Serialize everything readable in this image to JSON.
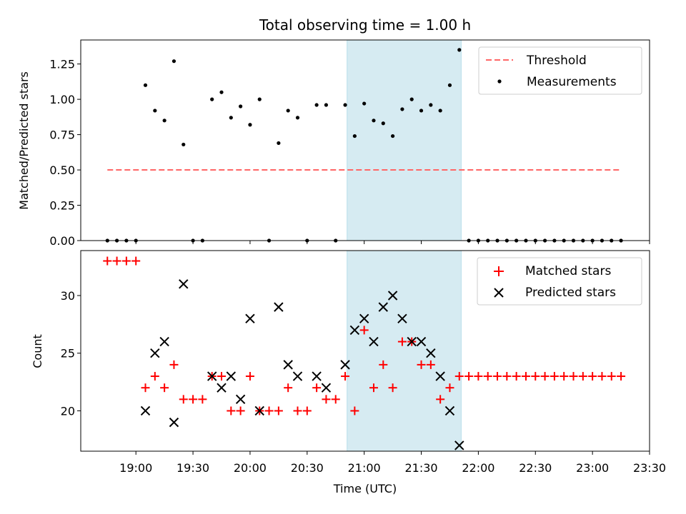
{
  "figure": {
    "title": "Total observing time = 1.00 h",
    "shade_color": "#add8e6",
    "threshold_color": "#ff6666",
    "matched_color": "#ff0000",
    "predicted_color": "#000000"
  },
  "chart_data": [
    {
      "type": "scatter",
      "title": "Total observing time = 1.00 h",
      "xlabel": "",
      "ylabel": "Matched/Predicted stars",
      "ylim": [
        0,
        1.42
      ],
      "yticks": [
        0.0,
        0.25,
        0.5,
        0.75,
        1.0,
        1.25
      ],
      "ytick_labels": [
        "0.00",
        "0.25",
        "0.50",
        "0.75",
        "1.00",
        "1.25"
      ],
      "xlim": [
        "18:31",
        "23:30"
      ],
      "shaded_interval": [
        "20:51",
        "21:51"
      ],
      "legend_position": "top-right",
      "threshold": {
        "name": "Threshold",
        "style": "dashed",
        "x": [
          "18:45",
          "23:15"
        ],
        "y": 0.5
      },
      "series": [
        {
          "name": "Measurements",
          "points": [
            [
              "18:45",
              0.0
            ],
            [
              "18:50",
              0.0
            ],
            [
              "18:55",
              0.0
            ],
            [
              "19:00",
              0.0
            ],
            [
              "19:05",
              1.1
            ],
            [
              "19:10",
              0.92
            ],
            [
              "19:15",
              0.85
            ],
            [
              "19:20",
              1.27
            ],
            [
              "19:25",
              0.68
            ],
            [
              "19:30",
              0.0
            ],
            [
              "19:35",
              0.0
            ],
            [
              "19:40",
              1.0
            ],
            [
              "19:45",
              1.05
            ],
            [
              "19:50",
              0.87
            ],
            [
              "19:55",
              0.95
            ],
            [
              "20:00",
              0.82
            ],
            [
              "20:05",
              1.0
            ],
            [
              "20:10",
              0.0
            ],
            [
              "20:15",
              0.69
            ],
            [
              "20:20",
              0.92
            ],
            [
              "20:25",
              0.87
            ],
            [
              "20:30",
              0.0
            ],
            [
              "20:35",
              0.96
            ],
            [
              "20:40",
              0.96
            ],
            [
              "20:45",
              0.0
            ],
            [
              "20:50",
              0.96
            ],
            [
              "20:55",
              0.74
            ],
            [
              "21:00",
              0.97
            ],
            [
              "21:05",
              0.85
            ],
            [
              "21:10",
              0.83
            ],
            [
              "21:15",
              0.74
            ],
            [
              "21:20",
              0.93
            ],
            [
              "21:25",
              1.0
            ],
            [
              "21:30",
              0.92
            ],
            [
              "21:35",
              0.96
            ],
            [
              "21:40",
              0.92
            ],
            [
              "21:45",
              1.1
            ],
            [
              "21:50",
              1.35
            ],
            [
              "21:55",
              0.0
            ],
            [
              "22:00",
              0.0
            ],
            [
              "22:05",
              0.0
            ],
            [
              "22:10",
              0.0
            ],
            [
              "22:15",
              0.0
            ],
            [
              "22:20",
              0.0
            ],
            [
              "22:25",
              0.0
            ],
            [
              "22:30",
              0.0
            ],
            [
              "22:35",
              0.0
            ],
            [
              "22:40",
              0.0
            ],
            [
              "22:45",
              0.0
            ],
            [
              "22:50",
              0.0
            ],
            [
              "22:55",
              0.0
            ],
            [
              "23:00",
              0.0
            ],
            [
              "23:05",
              0.0
            ],
            [
              "23:10",
              0.0
            ],
            [
              "23:15",
              0.0
            ]
          ]
        }
      ]
    },
    {
      "type": "scatter",
      "xlabel": "Time (UTC)",
      "ylabel": "Count",
      "ylim": [
        16.5,
        33.9
      ],
      "yticks": [
        20,
        25,
        30
      ],
      "ytick_labels": [
        "20",
        "25",
        "30"
      ],
      "xlim": [
        "18:31",
        "23:30"
      ],
      "xticks": [
        "19:00",
        "19:30",
        "20:00",
        "20:30",
        "21:00",
        "21:30",
        "22:00",
        "22:30",
        "23:00",
        "23:30"
      ],
      "shaded_interval": [
        "20:51",
        "21:51"
      ],
      "legend_position": "top-right",
      "series": [
        {
          "name": "Matched stars",
          "marker": "plus",
          "points": [
            [
              "18:45",
              33
            ],
            [
              "18:50",
              33
            ],
            [
              "18:55",
              33
            ],
            [
              "19:00",
              33
            ],
            [
              "19:05",
              22
            ],
            [
              "19:10",
              23
            ],
            [
              "19:15",
              22
            ],
            [
              "19:20",
              24
            ],
            [
              "19:25",
              21
            ],
            [
              "19:30",
              21
            ],
            [
              "19:35",
              21
            ],
            [
              "19:40",
              23
            ],
            [
              "19:45",
              23
            ],
            [
              "19:50",
              20
            ],
            [
              "19:55",
              20
            ],
            [
              "20:00",
              23
            ],
            [
              "20:05",
              20
            ],
            [
              "20:10",
              20
            ],
            [
              "20:15",
              20
            ],
            [
              "20:20",
              22
            ],
            [
              "20:25",
              20
            ],
            [
              "20:30",
              20
            ],
            [
              "20:35",
              22
            ],
            [
              "20:40",
              21
            ],
            [
              "20:45",
              21
            ],
            [
              "20:50",
              23
            ],
            [
              "20:55",
              20
            ],
            [
              "21:00",
              27
            ],
            [
              "21:05",
              22
            ],
            [
              "21:10",
              24
            ],
            [
              "21:15",
              22
            ],
            [
              "21:20",
              26
            ],
            [
              "21:25",
              26
            ],
            [
              "21:30",
              24
            ],
            [
              "21:35",
              24
            ],
            [
              "21:40",
              21
            ],
            [
              "21:45",
              22
            ],
            [
              "21:50",
              23
            ],
            [
              "21:55",
              23
            ],
            [
              "22:00",
              23
            ],
            [
              "22:05",
              23
            ],
            [
              "22:10",
              23
            ],
            [
              "22:15",
              23
            ],
            [
              "22:20",
              23
            ],
            [
              "22:25",
              23
            ],
            [
              "22:30",
              23
            ],
            [
              "22:35",
              23
            ],
            [
              "22:40",
              23
            ],
            [
              "22:45",
              23
            ],
            [
              "22:50",
              23
            ],
            [
              "22:55",
              23
            ],
            [
              "23:00",
              23
            ],
            [
              "23:05",
              23
            ],
            [
              "23:10",
              23
            ],
            [
              "23:15",
              23
            ]
          ]
        },
        {
          "name": "Predicted stars",
          "marker": "x",
          "points": [
            [
              "19:05",
              20
            ],
            [
              "19:10",
              25
            ],
            [
              "19:15",
              26
            ],
            [
              "19:20",
              19
            ],
            [
              "19:25",
              31
            ],
            [
              "19:40",
              23
            ],
            [
              "19:45",
              22
            ],
            [
              "19:50",
              23
            ],
            [
              "19:55",
              21
            ],
            [
              "20:00",
              28
            ],
            [
              "20:05",
              20
            ],
            [
              "20:15",
              29
            ],
            [
              "20:20",
              24
            ],
            [
              "20:25",
              23
            ],
            [
              "20:35",
              23
            ],
            [
              "20:40",
              22
            ],
            [
              "20:50",
              24
            ],
            [
              "20:55",
              27
            ],
            [
              "21:00",
              28
            ],
            [
              "21:05",
              26
            ],
            [
              "21:10",
              29
            ],
            [
              "21:15",
              30
            ],
            [
              "21:20",
              28
            ],
            [
              "21:25",
              26
            ],
            [
              "21:30",
              26
            ],
            [
              "21:35",
              25
            ],
            [
              "21:40",
              23
            ],
            [
              "21:45",
              20
            ],
            [
              "21:50",
              17
            ]
          ]
        }
      ]
    }
  ]
}
